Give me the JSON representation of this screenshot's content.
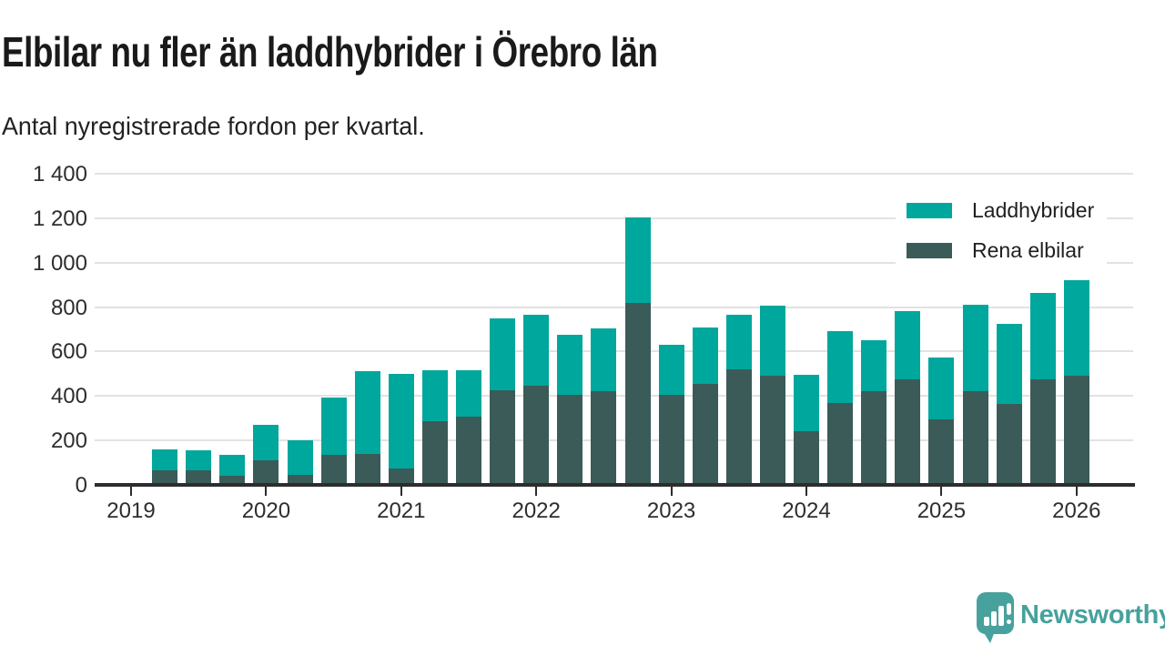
{
  "header": {
    "title": "Elbilar nu fler än laddhybrider i Örebro län",
    "subtitle": "Antal nyregistrerade fordon per kvartal."
  },
  "colors": {
    "laddhybrider": "#00a79c",
    "rena_elbilar": "#3b5b58",
    "gridline": "#e2e2e2",
    "axis": "#2d2d2d",
    "tick_text": "#2e2e2e",
    "brand": "#47a19c"
  },
  "legend": {
    "items": [
      {
        "label": "Laddhybrider",
        "color": "#00a79c"
      },
      {
        "label": "Rena elbilar",
        "color": "#3b5b58"
      }
    ]
  },
  "footer": {
    "brand": "Newsworthy",
    "logo_icon": "bar-chart-speech-bubble"
  },
  "chart_data": {
    "type": "bar",
    "stacked": true,
    "title": "Elbilar nu fler än laddhybrider i Örebro län",
    "subtitle": "Antal nyregistrerade fordon per kvartal.",
    "xlabel": "",
    "ylabel": "",
    "ylim": [
      0,
      1400
    ],
    "grid": true,
    "legend_position": "top-right",
    "yticks": [
      {
        "value": 0,
        "label": "0"
      },
      {
        "value": 200,
        "label": "200"
      },
      {
        "value": 400,
        "label": "400"
      },
      {
        "value": 600,
        "label": "600"
      },
      {
        "value": 800,
        "label": "800"
      },
      {
        "value": 1000,
        "label": "1 000"
      },
      {
        "value": 1200,
        "label": "1 200"
      },
      {
        "value": 1400,
        "label": "1 400"
      }
    ],
    "xticks": [
      "2019",
      "2020",
      "2021",
      "2022",
      "2023",
      "2024",
      "2025",
      "2026"
    ],
    "categories": [
      "2019 Q2",
      "2019 Q3",
      "2019 Q4",
      "2020 Q1",
      "2020 Q2",
      "2020 Q3",
      "2020 Q4",
      "2021 Q1",
      "2021 Q2",
      "2021 Q3",
      "2021 Q4",
      "2022 Q1",
      "2022 Q2",
      "2022 Q3",
      "2022 Q4",
      "2023 Q1",
      "2023 Q2",
      "2023 Q3",
      "2023 Q4",
      "2024 Q1",
      "2024 Q2",
      "2024 Q3",
      "2024 Q4",
      "2025 Q1",
      "2025 Q2",
      "2025 Q3",
      "2025 Q4",
      "2026 Q1"
    ],
    "series": [
      {
        "name": "Laddhybrider",
        "color": "#00a79c",
        "stack_layer": "top",
        "values": [
          95,
          90,
          95,
          160,
          155,
          260,
          370,
          425,
          230,
          210,
          325,
          320,
          270,
          285,
          385,
          225,
          255,
          245,
          315,
          255,
          320,
          230,
          305,
          280,
          390,
          360,
          390,
          430
        ]
      },
      {
        "name": "Rena elbilar",
        "color": "#3b5b58",
        "stack_layer": "bottom",
        "values": [
          65,
          65,
          40,
          110,
          45,
          135,
          140,
          75,
          285,
          305,
          425,
          445,
          405,
          420,
          820,
          405,
          455,
          520,
          490,
          240,
          370,
          420,
          475,
          295,
          420,
          365,
          475,
          490
        ]
      }
    ]
  }
}
